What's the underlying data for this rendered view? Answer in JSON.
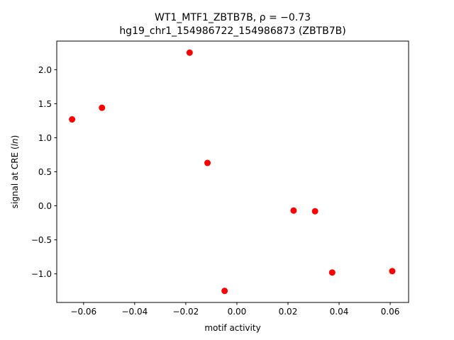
{
  "chart_data": {
    "type": "scatter",
    "title": "WT1_MTF1_ZBTB7B, ρ = −0.73",
    "subtitle": "hg19_chr1_154986722_154986873 (ZBTB7B)",
    "xlabel": "motif activity",
    "ylabel": "signal at CRE (ln)",
    "xlim": [
      -0.0705,
      0.0672
    ],
    "ylim": [
      -1.42,
      2.42
    ],
    "grid": false,
    "point_color": "#ff0000",
    "x_ticks": [
      {
        "value": -0.06,
        "label": "−0.06"
      },
      {
        "value": -0.04,
        "label": "−0.04"
      },
      {
        "value": -0.02,
        "label": "−0.02"
      },
      {
        "value": 0.0,
        "label": "0.00"
      },
      {
        "value": 0.02,
        "label": "0.02"
      },
      {
        "value": 0.04,
        "label": "0.04"
      },
      {
        "value": 0.06,
        "label": "0.06"
      }
    ],
    "y_ticks": [
      {
        "value": -1.0,
        "label": "−1.0"
      },
      {
        "value": -0.5,
        "label": "−0.5"
      },
      {
        "value": 0.0,
        "label": "0.0"
      },
      {
        "value": 0.5,
        "label": "0.5"
      },
      {
        "value": 1.0,
        "label": "1.0"
      },
      {
        "value": 1.5,
        "label": "1.5"
      },
      {
        "value": 2.0,
        "label": "2.0"
      }
    ],
    "points": [
      {
        "x": -0.0645,
        "y": 1.27
      },
      {
        "x": -0.0528,
        "y": 1.44
      },
      {
        "x": -0.0185,
        "y": 2.25
      },
      {
        "x": -0.0115,
        "y": 0.63
      },
      {
        "x": -0.0048,
        "y": -1.25
      },
      {
        "x": 0.0222,
        "y": -0.07
      },
      {
        "x": 0.0306,
        "y": -0.08
      },
      {
        "x": 0.0373,
        "y": -0.98
      },
      {
        "x": 0.0608,
        "y": -0.96
      }
    ]
  }
}
